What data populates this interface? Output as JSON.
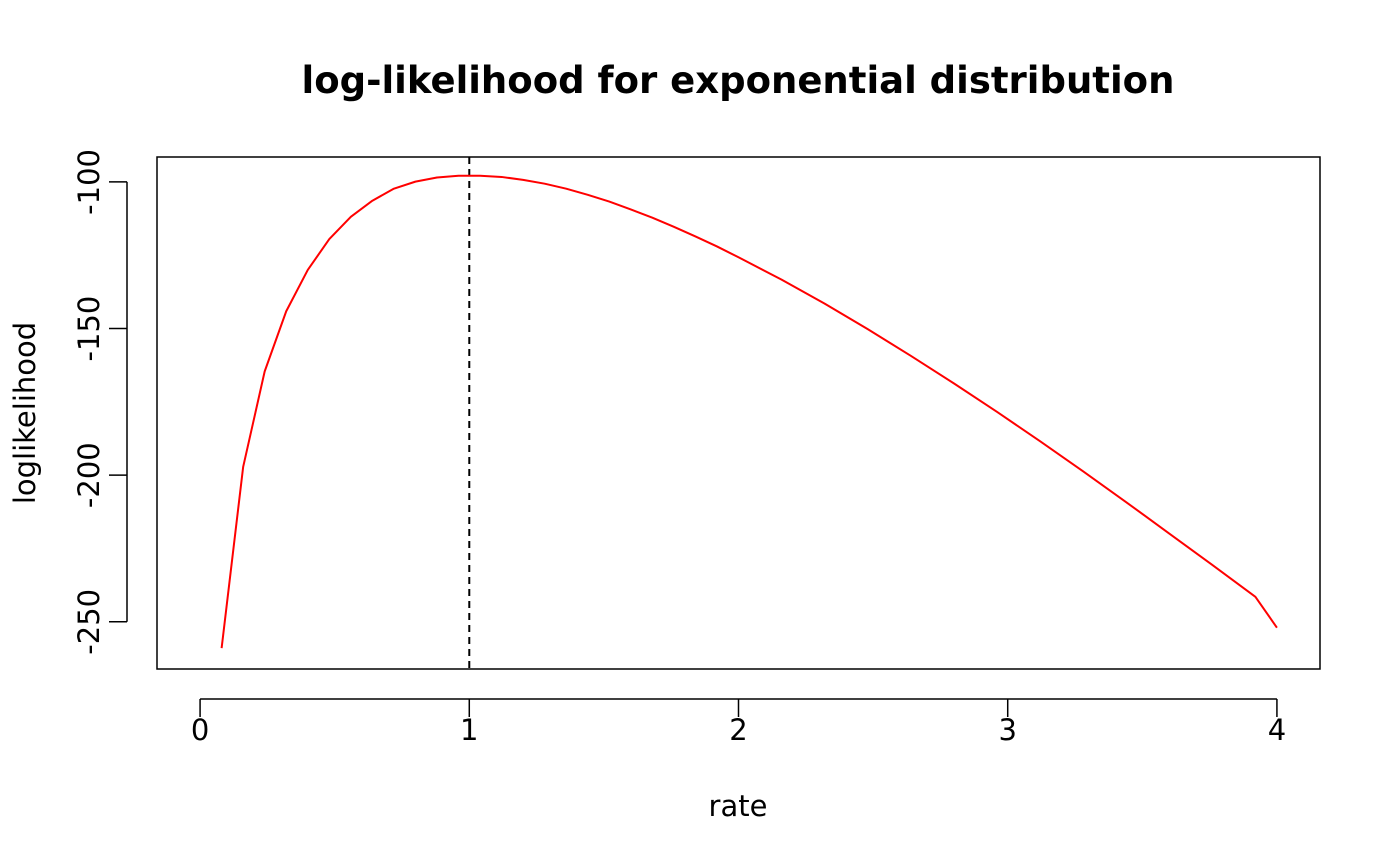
{
  "chart_data": {
    "type": "line",
    "title": "log-likelihood for exponential distribution",
    "xlabel": "rate",
    "ylabel": "loglikelihood",
    "xlim": [
      -0.16,
      4.16
    ],
    "ylim": [
      -266.1,
      -91.5
    ],
    "x_ticks": [
      0,
      1,
      2,
      3,
      4
    ],
    "y_ticks": [
      -100,
      -150,
      -200,
      -250
    ],
    "grid": false,
    "legend": "none",
    "series": [
      {
        "color": "#ff0000",
        "x": [
          0.08,
          0.16,
          0.24,
          0.32,
          0.4,
          0.48,
          0.56,
          0.64,
          0.72,
          0.8,
          0.88,
          0.96,
          1.04,
          1.12,
          1.2,
          1.28,
          1.36,
          1.44,
          1.52,
          1.6,
          1.68,
          1.76,
          1.84,
          1.92,
          2.0,
          2.16,
          2.32,
          2.48,
          2.64,
          2.8,
          2.96,
          3.12,
          3.28,
          3.44,
          3.6,
          3.76,
          3.92,
          4.0
        ],
        "y": [
          -259.0,
          -197.2,
          -164.6,
          -144.1,
          -130.0,
          -119.5,
          -111.9,
          -106.4,
          -102.3,
          -99.9,
          -98.5,
          -97.9,
          -97.9,
          -98.3,
          -99.3,
          -100.6,
          -102.3,
          -104.4,
          -106.7,
          -109.4,
          -112.2,
          -115.3,
          -118.6,
          -122.0,
          -125.7,
          -133.3,
          -141.5,
          -150.2,
          -159.3,
          -168.7,
          -178.4,
          -188.4,
          -198.7,
          -209.2,
          -219.9,
          -230.6,
          -241.5,
          -252.0
        ]
      }
    ],
    "reference_lines": [
      {
        "orientation": "vertical",
        "x": 1,
        "color": "#000000",
        "style": "dashed"
      }
    ]
  }
}
